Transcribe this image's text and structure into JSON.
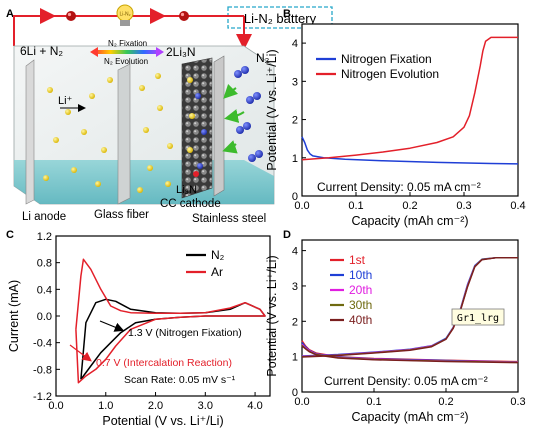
{
  "figure": {
    "bg": "#ffffff"
  },
  "panels": {
    "A": {
      "letter": "A",
      "title": "Li-N₂ battery",
      "equation_left": "6Li + N₂",
      "equation_right": "2Li₃N",
      "arrow_top": "N₂ Fixation",
      "arrow_bottom": "N₂ Evolution",
      "ion_label": "Li⁺",
      "gas_label": "N₂",
      "product_label": "Li₃N",
      "labels": {
        "anode": "Li anode",
        "separator": "Glass fiber",
        "cathode": "CC cathode",
        "collector": "Stainless steel"
      },
      "bulb": "Li-N₂"
    },
    "B": {
      "letter": "B",
      "annotation": "Current Density: 0.05 mA cm⁻²"
    },
    "C": {
      "letter": "C",
      "annotations": {
        "fix": "1.3 V (Nitrogen Fixation)",
        "intercalation": "0.7 V (Intercalation Reaction)",
        "scan": "Scan Rate: 0.05 mV s⁻¹"
      }
    },
    "D": {
      "letter": "D",
      "annotation": "Current Density: 0.05 mA cm⁻²",
      "tooltip": "Gr1_lrg"
    }
  },
  "chart_data": [
    {
      "id": "B",
      "type": "line",
      "xlabel": "Capacity (mAh cm⁻²)",
      "ylabel": "Potential (V vs. Li⁺/Li)",
      "xlim": [
        0,
        0.4
      ],
      "ylim": [
        0,
        4.5
      ],
      "xticks": [
        "0.0",
        "0.1",
        "0.2",
        "0.3",
        "0.4"
      ],
      "xtick_values": [
        0,
        0.1,
        0.2,
        0.3,
        0.4
      ],
      "yticks": [
        "0",
        "1",
        "2",
        "3",
        "4"
      ],
      "ytick_values": [
        0,
        1,
        2,
        3,
        4
      ],
      "legend_position": "top-right",
      "series": [
        {
          "name": "Nitrogen Fixation",
          "color": "#1f3fd6",
          "x": [
            0,
            0.005,
            0.01,
            0.015,
            0.02,
            0.04,
            0.08,
            0.15,
            0.25,
            0.35,
            0.4
          ],
          "y": [
            1.55,
            1.4,
            1.2,
            1.1,
            1.05,
            1.0,
            0.96,
            0.92,
            0.88,
            0.85,
            0.84
          ]
        },
        {
          "name": "Nitrogen Evolution",
          "color": "#e3202a",
          "x": [
            0,
            0.05,
            0.1,
            0.15,
            0.2,
            0.25,
            0.28,
            0.3,
            0.31,
            0.32,
            0.33,
            0.335,
            0.34,
            0.35,
            0.38,
            0.4
          ],
          "y": [
            0.95,
            1.0,
            1.07,
            1.15,
            1.25,
            1.4,
            1.55,
            1.8,
            2.1,
            2.7,
            3.4,
            3.8,
            4.05,
            4.15,
            4.15,
            4.15
          ]
        }
      ]
    },
    {
      "id": "C",
      "type": "line",
      "xlabel": "Potential (V vs. Li⁺/Li)",
      "ylabel": "Current (mA)",
      "xlim": [
        0,
        4.3
      ],
      "ylim": [
        -1.2,
        1.2
      ],
      "xticks": [
        "0.0",
        "1.0",
        "2.0",
        "3.0",
        "4.0"
      ],
      "xtick_values": [
        0,
        1,
        2,
        3,
        4
      ],
      "yticks": [
        "-1.2",
        "-0.8",
        "-0.4",
        "0.0",
        "0.4",
        "0.8",
        "1.2"
      ],
      "ytick_values": [
        -1.2,
        -0.8,
        -0.4,
        0,
        0.4,
        0.8,
        1.2
      ],
      "legend_position": "top-right",
      "series": [
        {
          "name": "N₂",
          "color": "#000000",
          "x": [
            0.5,
            0.6,
            0.8,
            1.0,
            1.2,
            1.5,
            2.0,
            2.5,
            3.0,
            3.5,
            3.8,
            4.1,
            4.2,
            4.0,
            3.5,
            3.0,
            2.5,
            2.0,
            1.6,
            1.3,
            1.1,
            0.9,
            0.7,
            0.55,
            0.5
          ],
          "y": [
            -0.95,
            -0.1,
            0.2,
            0.25,
            0.22,
            0.1,
            0.05,
            0.04,
            0.05,
            0.1,
            0.2,
            0.1,
            0.0,
            0.0,
            0.0,
            0.0,
            -0.02,
            -0.05,
            -0.1,
            -0.25,
            -0.4,
            -0.55,
            -0.75,
            -0.9,
            -0.95
          ]
        },
        {
          "name": "Ar",
          "color": "#e3202a",
          "x": [
            0.4,
            0.5,
            0.55,
            0.7,
            0.9,
            1.1,
            1.3,
            1.5,
            2.0,
            2.5,
            3.0,
            3.5,
            3.8,
            4.1,
            4.2,
            4.0,
            3.5,
            3.0,
            2.5,
            2.0,
            1.5,
            1.2,
            1.0,
            0.8,
            0.6,
            0.45,
            0.4
          ],
          "y": [
            -0.2,
            0.6,
            0.85,
            0.7,
            0.4,
            0.15,
            0.08,
            0.05,
            0.04,
            0.04,
            0.05,
            0.12,
            0.2,
            0.1,
            0.0,
            0.0,
            0.0,
            0.0,
            -0.02,
            -0.05,
            -0.2,
            -0.45,
            -0.65,
            -0.8,
            -0.9,
            -1.0,
            -0.2
          ]
        }
      ]
    },
    {
      "id": "D",
      "type": "line",
      "xlabel": "Capacity (mAh cm⁻²)",
      "ylabel": "Potential (V vs. Li⁺/Li)",
      "xlim": [
        0,
        0.3
      ],
      "ylim": [
        0,
        4.3
      ],
      "xticks": [
        "0.0",
        "0.1",
        "0.2",
        "0.3"
      ],
      "xtick_values": [
        0,
        0.1,
        0.2,
        0.3
      ],
      "yticks": [
        "0",
        "1",
        "2",
        "3",
        "4"
      ],
      "ytick_values": [
        0,
        1,
        2,
        3,
        4
      ],
      "legend_position": "top-left",
      "series": [
        {
          "name": "1st",
          "color": "#e3202a",
          "charge": {
            "x": [
              0,
              0.05,
              0.1,
              0.15,
              0.18,
              0.2,
              0.21,
              0.22,
              0.23,
              0.24,
              0.25,
              0.27,
              0.3
            ],
            "y": [
              1.0,
              1.05,
              1.12,
              1.2,
              1.3,
              1.5,
              1.8,
              2.3,
              3.0,
              3.55,
              3.75,
              3.8,
              3.8
            ]
          },
          "discharge": {
            "x": [
              0,
              0.005,
              0.01,
              0.02,
              0.05,
              0.1,
              0.2,
              0.3
            ],
            "y": [
              1.45,
              1.3,
              1.2,
              1.1,
              1.0,
              0.95,
              0.9,
              0.86
            ]
          }
        },
        {
          "name": "10th",
          "color": "#1f3fd6",
          "charge": {
            "x": [
              0,
              0.05,
              0.1,
              0.15,
              0.18,
              0.2,
              0.21,
              0.22,
              0.23,
              0.24,
              0.25,
              0.27,
              0.3
            ],
            "y": [
              1.02,
              1.06,
              1.13,
              1.21,
              1.31,
              1.52,
              1.83,
              2.35,
              3.05,
              3.58,
              3.76,
              3.8,
              3.8
            ]
          },
          "discharge": {
            "x": [
              0,
              0.005,
              0.01,
              0.02,
              0.05,
              0.1,
              0.2,
              0.3
            ],
            "y": [
              1.4,
              1.28,
              1.18,
              1.08,
              0.99,
              0.94,
              0.89,
              0.85
            ]
          }
        },
        {
          "name": "20th",
          "color": "#e01ee0",
          "charge": {
            "x": [
              0,
              0.05,
              0.1,
              0.15,
              0.18,
              0.2,
              0.21,
              0.22,
              0.23,
              0.24,
              0.25,
              0.27,
              0.3
            ],
            "y": [
              1.01,
              1.05,
              1.12,
              1.2,
              1.3,
              1.5,
              1.82,
              2.33,
              3.02,
              3.56,
              3.75,
              3.8,
              3.8
            ]
          },
          "discharge": {
            "x": [
              0,
              0.005,
              0.01,
              0.02,
              0.05,
              0.1,
              0.2,
              0.3
            ],
            "y": [
              1.35,
              1.25,
              1.17,
              1.07,
              0.98,
              0.93,
              0.88,
              0.85
            ]
          }
        },
        {
          "name": "30th",
          "color": "#6f6a10",
          "charge": {
            "x": [
              0,
              0.05,
              0.1,
              0.15,
              0.18,
              0.2,
              0.21,
              0.22,
              0.23,
              0.24,
              0.25,
              0.27,
              0.3
            ],
            "y": [
              1.0,
              1.04,
              1.11,
              1.19,
              1.29,
              1.5,
              1.81,
              2.32,
              3.0,
              3.55,
              3.75,
              3.8,
              3.8
            ]
          },
          "discharge": {
            "x": [
              0,
              0.005,
              0.01,
              0.02,
              0.05,
              0.1,
              0.2,
              0.3
            ],
            "y": [
              1.32,
              1.23,
              1.15,
              1.06,
              0.97,
              0.92,
              0.87,
              0.84
            ]
          }
        },
        {
          "name": "40th",
          "color": "#7a1f1f",
          "charge": {
            "x": [
              0,
              0.05,
              0.1,
              0.15,
              0.18,
              0.2,
              0.21,
              0.22,
              0.23,
              0.24,
              0.25,
              0.27,
              0.3
            ],
            "y": [
              0.99,
              1.03,
              1.1,
              1.18,
              1.28,
              1.49,
              1.8,
              2.3,
              2.98,
              3.54,
              3.74,
              3.8,
              3.8
            ]
          },
          "discharge": {
            "x": [
              0,
              0.005,
              0.01,
              0.02,
              0.05,
              0.1,
              0.2,
              0.3
            ],
            "y": [
              1.3,
              1.22,
              1.14,
              1.05,
              0.96,
              0.91,
              0.86,
              0.83
            ]
          }
        }
      ]
    }
  ]
}
